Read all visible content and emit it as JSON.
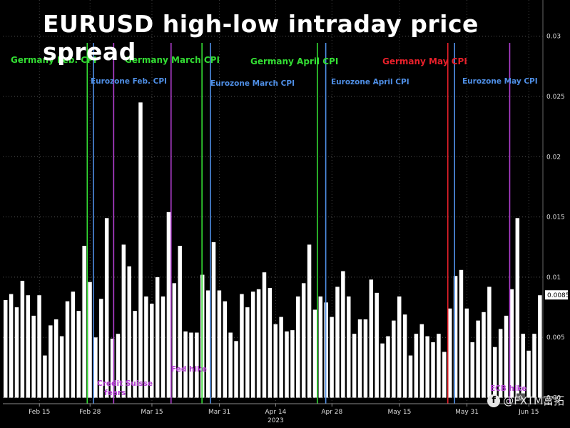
{
  "chart_data": {
    "type": "bar",
    "title": "EURUSD high-low intraday price spread",
    "xlabel": "2023",
    "ylabel": "",
    "ylim": [
      -0.0005,
      0.033
    ],
    "yticks": [
      "0.00",
      "0.005",
      "0.01",
      "0.015",
      "0.02",
      "0.025",
      "0.03"
    ],
    "grid": true,
    "last_value_label": "0.0085",
    "zero_label": "0",
    "x_tick_labels": [
      {
        "label": "Feb 15",
        "index": 6
      },
      {
        "label": "Feb 28",
        "index": 15
      },
      {
        "label": "Mar 15",
        "index": 26
      },
      {
        "label": "Mar 31",
        "index": 38
      },
      {
        "label": "Apr 14",
        "index": 48
      },
      {
        "label": "Apr 28",
        "index": 58
      },
      {
        "label": "May 15",
        "index": 70
      },
      {
        "label": "May 31",
        "index": 82
      },
      {
        "label": "Jun 15",
        "index": 93
      }
    ],
    "values": [
      0.0081,
      0.0086,
      0.0075,
      0.0097,
      0.0085,
      0.0068,
      0.0085,
      0.0035,
      0.006,
      0.0065,
      0.0051,
      0.008,
      0.0088,
      0.0072,
      0.0126,
      0.0096,
      0.005,
      0.0082,
      0.0149,
      0.0049,
      0.0053,
      0.0127,
      0.0109,
      0.0072,
      0.0245,
      0.0084,
      0.0078,
      0.01,
      0.0084,
      0.0154,
      0.0095,
      0.0126,
      0.0055,
      0.0054,
      0.0054,
      0.0102,
      0.0089,
      0.0129,
      0.0089,
      0.008,
      0.0054,
      0.0047,
      0.0086,
      0.0075,
      0.0088,
      0.009,
      0.0104,
      0.0091,
      0.0061,
      0.0067,
      0.0055,
      0.0056,
      0.0084,
      0.0095,
      0.0127,
      0.0073,
      0.0084,
      0.0079,
      0.0067,
      0.0092,
      0.0105,
      0.0084,
      0.0053,
      0.0065,
      0.0065,
      0.0098,
      0.0087,
      0.0045,
      0.0051,
      0.0064,
      0.0084,
      0.0069,
      0.0035,
      0.0053,
      0.0061,
      0.0051,
      0.0046,
      0.0053,
      0.0038,
      0.0074,
      0.0101,
      0.0106,
      0.0074,
      0.0046,
      0.0064,
      0.0071,
      0.0092,
      0.0042,
      0.0057,
      0.0068,
      0.009,
      0.0149,
      0.0053,
      0.0039,
      0.0053,
      0.0085
    ],
    "markers": [
      {
        "label": "Germany Feb. CPI",
        "index": 14.5,
        "color": "#33dd33",
        "position": "top"
      },
      {
        "label": "Eurozone Feb. CPI",
        "index": 15.6,
        "color": "#4f8fe6",
        "position": "top"
      },
      {
        "label": "Credit Suisse fears",
        "index": 19.2,
        "color": "#b23fd1",
        "position": "bottom"
      },
      {
        "label": "Germany March CPI",
        "index": 34.9,
        "color": "#33dd33",
        "position": "top"
      },
      {
        "label": "Fed hike",
        "index": 29.4,
        "color": "#b23fd1",
        "position": "bottom"
      },
      {
        "label": "Eurozone March CPI",
        "index": 36.4,
        "color": "#4f8fe6",
        "position": "top"
      },
      {
        "label": "Germany April CPI",
        "index": 55.4,
        "color": "#33dd33",
        "position": "top"
      },
      {
        "label": "Eurozone April CPI",
        "index": 56.9,
        "color": "#4f8fe6",
        "position": "top"
      },
      {
        "label": "Germany May CPI",
        "index": 78.6,
        "color": "#e8202a",
        "position": "top"
      },
      {
        "label": "Eurozone May CPI",
        "index": 79.8,
        "color": "#4f8fe6",
        "position": "top"
      },
      {
        "label": "ECB hike",
        "index": 89.6,
        "color": "#b23fd1",
        "position": "bottom"
      }
    ]
  },
  "watermark": {
    "icon": "fb-logo-icon",
    "text": "@FXTM富拓"
  }
}
